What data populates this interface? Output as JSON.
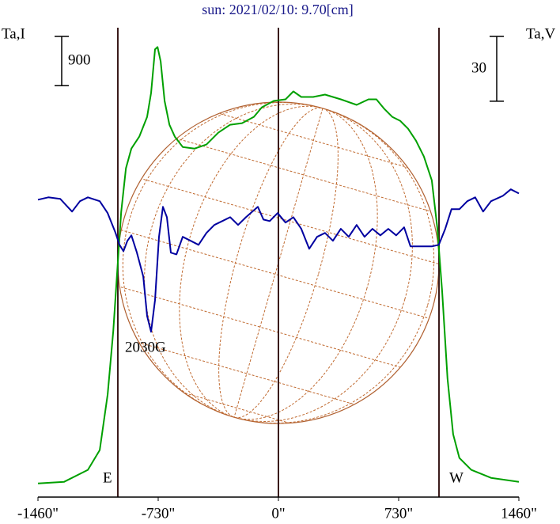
{
  "chart_data": {
    "type": "line",
    "title": "sun: 2021/02/10: 9.70[cm]",
    "y_label": "Ta,I",
    "y2_label": "Ta,V",
    "xlim": [
      -1460,
      1460
    ],
    "xticks": [
      {
        "value": -1460,
        "label": "-1460\""
      },
      {
        "value": -730,
        "label": "-730\""
      },
      {
        "value": 0,
        "label": "0\""
      },
      {
        "value": 730,
        "label": "730\""
      },
      {
        "value": 1460,
        "label": "1460\""
      }
    ],
    "ylim": [
      -250,
      8400
    ],
    "y2lim": [
      -116,
      103
    ],
    "limbs": [
      -975,
      975
    ],
    "center_line": 0,
    "scale_I": 900,
    "scale_V": 30,
    "annotations": [
      "2030G",
      "E",
      "W"
    ],
    "series": [
      {
        "color": "#00a000",
        "x": [
          -1460,
          -1301,
          -1157,
          -1085,
          -1037,
          -1003,
          -974,
          -955,
          -926,
          -893,
          -845,
          -797,
          -773,
          -749,
          -734,
          -715,
          -691,
          -662,
          -629,
          -581,
          -509,
          -437,
          -365,
          -293,
          -221,
          -149,
          -101,
          -29,
          43,
          91,
          139,
          211,
          283,
          379,
          475,
          547,
          595,
          643,
          691,
          739,
          787,
          835,
          883,
          931,
          965,
          994,
          1027,
          1061,
          1099,
          1171,
          1291,
          1460
        ],
        "values": [
          0,
          29,
          247,
          609,
          1624,
          2784,
          4089,
          4959,
          5757,
          6119,
          6337,
          6699,
          7134,
          7932,
          7975,
          7714,
          6989,
          6554,
          6337,
          6148,
          6119,
          6192,
          6409,
          6554,
          6583,
          6699,
          6873,
          6989,
          7018,
          7163,
          7062,
          7062,
          7105,
          7018,
          6917,
          7018,
          7018,
          6844,
          6699,
          6627,
          6482,
          6264,
          5974,
          5539,
          4669,
          3509,
          1914,
          899,
          464,
          247,
          102,
          29
        ]
      },
      {
        "color": "#0000a0",
        "axis": "y2",
        "x": [
          -1460,
          -1397,
          -1325,
          -1253,
          -1205,
          -1157,
          -1085,
          -1037,
          -989,
          -965,
          -941,
          -917,
          -893,
          -859,
          -821,
          -797,
          -773,
          -749,
          -725,
          -701,
          -677,
          -653,
          -619,
          -581,
          -533,
          -485,
          -437,
          -389,
          -341,
          -293,
          -245,
          -197,
          -158,
          -125,
          -91,
          -53,
          -5,
          43,
          91,
          139,
          187,
          235,
          283,
          331,
          379,
          427,
          475,
          523,
          571,
          619,
          667,
          715,
          763,
          802,
          859,
          931,
          974,
          1013,
          1051,
          1099,
          1147,
          1195,
          1243,
          1291,
          1363,
          1411,
          1460
        ],
        "values": [
          21.6,
          22.7,
          22.0,
          16.1,
          20.9,
          22.7,
          20.9,
          15.4,
          6.2,
          0.7,
          -2.2,
          2.6,
          5.1,
          -2.9,
          -13.9,
          -32.2,
          -39.5,
          -24.9,
          4.4,
          18.3,
          13.5,
          -2.9,
          -3.7,
          4.4,
          2.6,
          0.7,
          6.2,
          9.9,
          11.7,
          13.5,
          9.9,
          13.5,
          16.1,
          18.3,
          12.4,
          11.7,
          15.4,
          11.0,
          13.5,
          8.1,
          -1.1,
          4.4,
          6.2,
          2.6,
          8.1,
          4.4,
          9.9,
          4.4,
          8.1,
          5.1,
          8.1,
          5.1,
          8.8,
          0,
          0,
          0,
          0.7,
          8.1,
          17.2,
          17.2,
          20.9,
          22.7,
          16.1,
          20.9,
          23.4,
          26.4,
          24.5
        ]
      }
    ]
  }
}
